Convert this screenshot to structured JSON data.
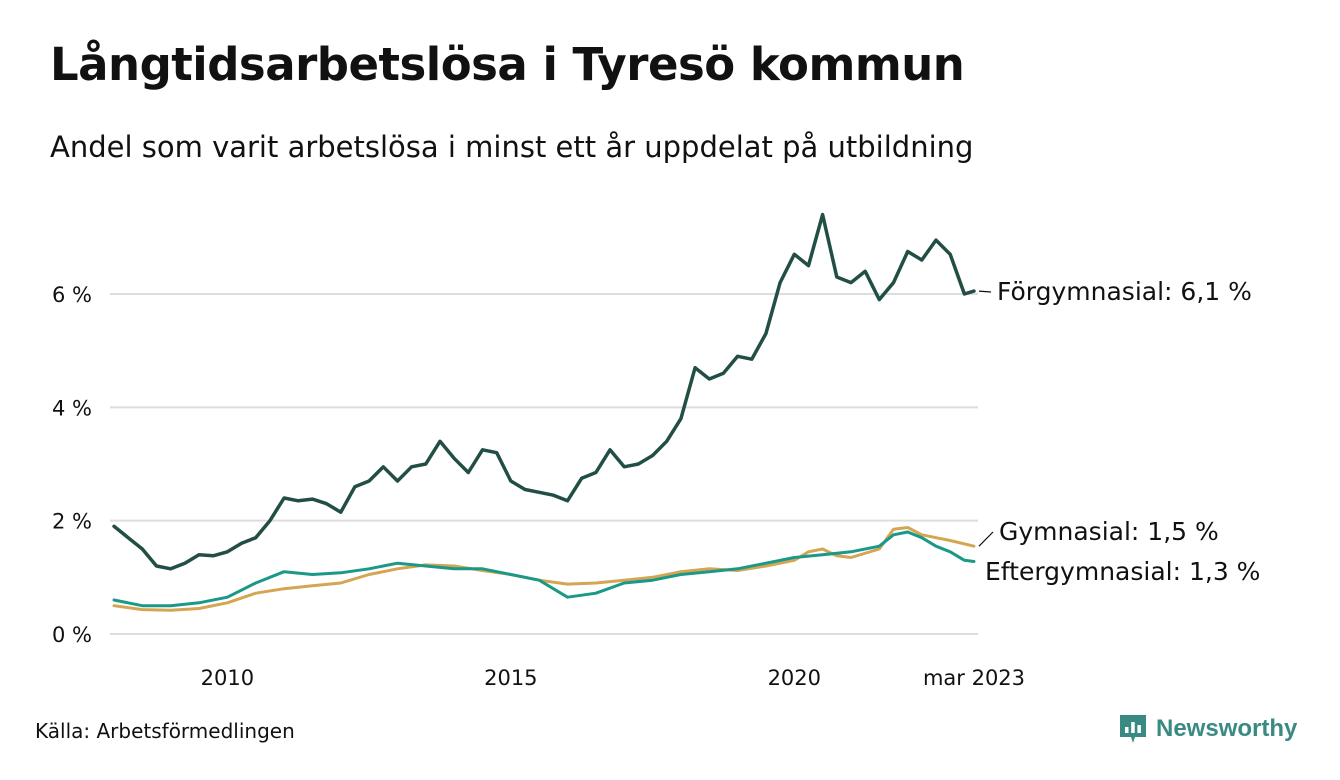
{
  "title": "Långtidsarbetslösa i Tyresö kommun",
  "subtitle": "Andel som varit arbetslösa i minst ett år uppdelat på utbildning",
  "source": "Källa: Arbetsförmedlingen",
  "brand": "Newsworthy",
  "colors": {
    "forgymnasial": "#224e46",
    "eftergymnasial": "#1a9888",
    "gymnasial": "#d4a552",
    "grid": "#dddddd",
    "brand": "#3a8a84"
  },
  "chart_data": {
    "type": "line",
    "x_unit": "year (decimal)",
    "xlim": [
      2008.0,
      2023.17
    ],
    "ylim": [
      0,
      7.5
    ],
    "y_ticks": [
      0,
      2,
      4,
      6
    ],
    "y_tick_labels": [
      "0 %",
      "2 %",
      "4 %",
      "6 %"
    ],
    "x_ticks": [
      2010,
      2015,
      2020,
      2023.17
    ],
    "x_tick_labels": [
      "2010",
      "2015",
      "2020",
      "mar 2023"
    ],
    "grid": true,
    "legend": "direct labels at line ends (right)",
    "series": [
      {
        "key": "forgymnasial",
        "label": "Förgymnasial: 6,1 %",
        "points": [
          [
            2008.0,
            1.9
          ],
          [
            2008.25,
            1.7
          ],
          [
            2008.5,
            1.5
          ],
          [
            2008.75,
            1.2
          ],
          [
            2009.0,
            1.15
          ],
          [
            2009.25,
            1.25
          ],
          [
            2009.5,
            1.4
          ],
          [
            2009.75,
            1.38
          ],
          [
            2010.0,
            1.45
          ],
          [
            2010.25,
            1.6
          ],
          [
            2010.5,
            1.7
          ],
          [
            2010.75,
            2.0
          ],
          [
            2011.0,
            2.4
          ],
          [
            2011.25,
            2.35
          ],
          [
            2011.5,
            2.38
          ],
          [
            2011.75,
            2.3
          ],
          [
            2012.0,
            2.15
          ],
          [
            2012.25,
            2.6
          ],
          [
            2012.5,
            2.7
          ],
          [
            2012.75,
            2.95
          ],
          [
            2013.0,
            2.7
          ],
          [
            2013.25,
            2.95
          ],
          [
            2013.5,
            3.0
          ],
          [
            2013.75,
            3.4
          ],
          [
            2014.0,
            3.1
          ],
          [
            2014.25,
            2.85
          ],
          [
            2014.5,
            3.25
          ],
          [
            2014.75,
            3.2
          ],
          [
            2015.0,
            2.7
          ],
          [
            2015.25,
            2.55
          ],
          [
            2015.5,
            2.5
          ],
          [
            2015.75,
            2.45
          ],
          [
            2016.0,
            2.35
          ],
          [
            2016.25,
            2.75
          ],
          [
            2016.5,
            2.85
          ],
          [
            2016.75,
            3.25
          ],
          [
            2017.0,
            2.95
          ],
          [
            2017.25,
            3.0
          ],
          [
            2017.5,
            3.15
          ],
          [
            2017.75,
            3.4
          ],
          [
            2018.0,
            3.8
          ],
          [
            2018.25,
            4.7
          ],
          [
            2018.5,
            4.5
          ],
          [
            2018.75,
            4.6
          ],
          [
            2019.0,
            4.9
          ],
          [
            2019.25,
            4.85
          ],
          [
            2019.5,
            5.3
          ],
          [
            2019.75,
            6.2
          ],
          [
            2020.0,
            6.7
          ],
          [
            2020.25,
            6.5
          ],
          [
            2020.5,
            7.4
          ],
          [
            2020.75,
            6.3
          ],
          [
            2021.0,
            6.2
          ],
          [
            2021.25,
            6.4
          ],
          [
            2021.5,
            5.9
          ],
          [
            2021.75,
            6.2
          ],
          [
            2022.0,
            6.75
          ],
          [
            2022.25,
            6.6
          ],
          [
            2022.5,
            6.95
          ],
          [
            2022.75,
            6.7
          ],
          [
            2023.0,
            6.0
          ],
          [
            2023.17,
            6.05
          ]
        ]
      },
      {
        "key": "gymnasial",
        "label": "Gymnasial: 1,5 %",
        "points": [
          [
            2008.0,
            0.5
          ],
          [
            2008.5,
            0.43
          ],
          [
            2009.0,
            0.42
          ],
          [
            2009.5,
            0.45
          ],
          [
            2010.0,
            0.55
          ],
          [
            2010.5,
            0.72
          ],
          [
            2011.0,
            0.8
          ],
          [
            2011.5,
            0.85
          ],
          [
            2012.0,
            0.9
          ],
          [
            2012.5,
            1.05
          ],
          [
            2013.0,
            1.15
          ],
          [
            2013.5,
            1.22
          ],
          [
            2014.0,
            1.2
          ],
          [
            2014.5,
            1.12
          ],
          [
            2015.0,
            1.05
          ],
          [
            2015.5,
            0.95
          ],
          [
            2016.0,
            0.88
          ],
          [
            2016.5,
            0.9
          ],
          [
            2017.0,
            0.95
          ],
          [
            2017.5,
            1.0
          ],
          [
            2018.0,
            1.1
          ],
          [
            2018.5,
            1.15
          ],
          [
            2019.0,
            1.12
          ],
          [
            2019.5,
            1.2
          ],
          [
            2020.0,
            1.3
          ],
          [
            2020.25,
            1.45
          ],
          [
            2020.5,
            1.5
          ],
          [
            2020.75,
            1.38
          ],
          [
            2021.0,
            1.35
          ],
          [
            2021.5,
            1.5
          ],
          [
            2021.75,
            1.85
          ],
          [
            2022.0,
            1.88
          ],
          [
            2022.25,
            1.75
          ],
          [
            2022.5,
            1.7
          ],
          [
            2022.75,
            1.65
          ],
          [
            2023.17,
            1.55
          ]
        ]
      },
      {
        "key": "eftergymnasial",
        "label": "Eftergymnasial: 1,3 %",
        "points": [
          [
            2008.0,
            0.6
          ],
          [
            2008.5,
            0.5
          ],
          [
            2009.0,
            0.5
          ],
          [
            2009.5,
            0.55
          ],
          [
            2010.0,
            0.65
          ],
          [
            2010.5,
            0.9
          ],
          [
            2011.0,
            1.1
          ],
          [
            2011.5,
            1.05
          ],
          [
            2012.0,
            1.08
          ],
          [
            2012.5,
            1.15
          ],
          [
            2013.0,
            1.25
          ],
          [
            2013.5,
            1.2
          ],
          [
            2014.0,
            1.15
          ],
          [
            2014.5,
            1.15
          ],
          [
            2015.0,
            1.05
          ],
          [
            2015.5,
            0.95
          ],
          [
            2016.0,
            0.65
          ],
          [
            2016.5,
            0.72
          ],
          [
            2017.0,
            0.9
          ],
          [
            2017.5,
            0.95
          ],
          [
            2018.0,
            1.05
          ],
          [
            2018.5,
            1.1
          ],
          [
            2019.0,
            1.15
          ],
          [
            2019.5,
            1.25
          ],
          [
            2020.0,
            1.35
          ],
          [
            2020.5,
            1.4
          ],
          [
            2021.0,
            1.45
          ],
          [
            2021.5,
            1.55
          ],
          [
            2021.75,
            1.75
          ],
          [
            2022.0,
            1.8
          ],
          [
            2022.25,
            1.7
          ],
          [
            2022.5,
            1.55
          ],
          [
            2022.75,
            1.45
          ],
          [
            2023.0,
            1.3
          ],
          [
            2023.17,
            1.28
          ]
        ]
      }
    ]
  }
}
